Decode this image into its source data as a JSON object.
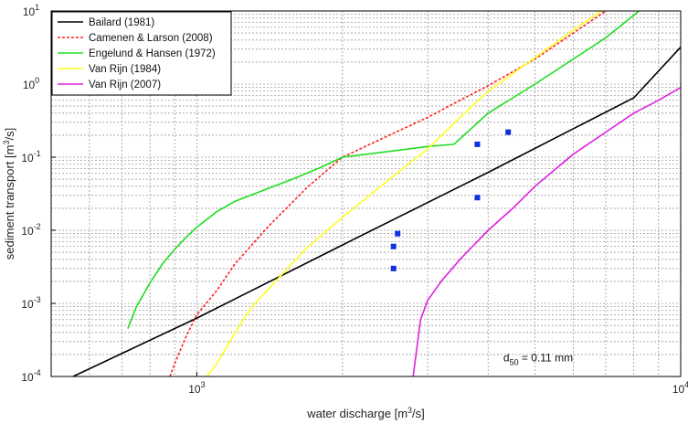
{
  "chart_data": {
    "type": "line",
    "xlabel": "water discharge [m",
    "xlabel_sup": "3",
    "xlabel_tail": "/s]",
    "ylabel": "sediment transport [m",
    "ylabel_sup": "3",
    "ylabel_tail": "/s]",
    "x_scale": "log",
    "y_scale": "log",
    "xlim": [
      500,
      10000
    ],
    "ylim": [
      0.0001,
      10
    ],
    "grid": true,
    "legend_position": "top-left",
    "x_ticks": [
      {
        "value": 1000,
        "base": "10",
        "exp": "3"
      },
      {
        "value": 10000,
        "base": "10",
        "exp": "4"
      }
    ],
    "y_ticks": [
      {
        "value": 0.0001,
        "base": "10",
        "exp": "-4"
      },
      {
        "value": 0.001,
        "base": "10",
        "exp": "-3"
      },
      {
        "value": 0.01,
        "base": "10",
        "exp": "-2"
      },
      {
        "value": 0.1,
        "base": "10",
        "exp": "-1"
      },
      {
        "value": 1,
        "base": "10",
        "exp": "0"
      },
      {
        "value": 10,
        "base": "10",
        "exp": "1"
      }
    ],
    "series": [
      {
        "name": "Bailard (1981)",
        "color": "#000000",
        "dash": "solid",
        "x": [
          555,
          1000,
          2000,
          4000,
          8000,
          10000
        ],
        "y": [
          0.0001,
          0.00063,
          0.0063,
          0.062,
          0.65,
          3.2
        ]
      },
      {
        "name": "Camenen & Larson (2008)",
        "color": "#ff2020",
        "dash": "dashed",
        "x": [
          880,
          900,
          950,
          1000,
          1100,
          1200,
          1400,
          1700,
          2000,
          2500,
          3000,
          3500,
          4000,
          5000,
          6000,
          7000
        ],
        "y": [
          0.0001,
          0.00015,
          0.00035,
          0.0007,
          0.0015,
          0.0035,
          0.011,
          0.04,
          0.1,
          0.2,
          0.35,
          0.6,
          0.95,
          2.2,
          5,
          10
        ]
      },
      {
        "name": "Engelund & Hansen (1972)",
        "color": "#22dd22",
        "dash": "solid",
        "x": [
          720,
          750,
          800,
          850,
          900,
          950,
          1000,
          1100,
          1200,
          1400,
          1600,
          1800,
          2000,
          2500,
          3000,
          3400,
          4000,
          5000,
          6000,
          7000,
          8200
        ],
        "y": [
          0.00045,
          0.0009,
          0.0019,
          0.0035,
          0.0055,
          0.008,
          0.011,
          0.018,
          0.025,
          0.037,
          0.052,
          0.072,
          0.1,
          0.12,
          0.14,
          0.15,
          0.4,
          1.0,
          2.2,
          4.3,
          10
        ]
      },
      {
        "name": "Van Rijn (1984)",
        "color": "#ffff22",
        "dash": "solid",
        "x": [
          1050,
          1100,
          1200,
          1300,
          1500,
          1700,
          2000,
          2500,
          3000,
          3500,
          4000,
          5000,
          6000,
          7000
        ],
        "y": [
          0.0001,
          0.00015,
          0.0004,
          0.0009,
          0.0025,
          0.006,
          0.015,
          0.05,
          0.13,
          0.35,
          0.8,
          2.3,
          5.5,
          11
        ]
      },
      {
        "name": "Van Rijn (2007)",
        "color": "#dd22dd",
        "dash": "solid",
        "x": [
          2800,
          2850,
          2900,
          3000,
          3200,
          3500,
          4000,
          4500,
          5000,
          6000,
          7000,
          8000,
          9000,
          10000
        ],
        "y": [
          0.0001,
          0.00025,
          0.0006,
          0.0011,
          0.002,
          0.004,
          0.01,
          0.02,
          0.04,
          0.11,
          0.22,
          0.4,
          0.6,
          0.9
        ]
      }
    ],
    "observations": {
      "color": "#1030e0",
      "x": [
        2600,
        2550,
        2550,
        3800,
        3800,
        4400
      ],
      "y": [
        0.009,
        0.006,
        0.003,
        0.15,
        0.028,
        0.22
      ]
    },
    "annotation": {
      "main": "d",
      "sub": "50",
      "rest": " = 0.11 mm",
      "x": 4300,
      "y": 0.00016
    }
  }
}
